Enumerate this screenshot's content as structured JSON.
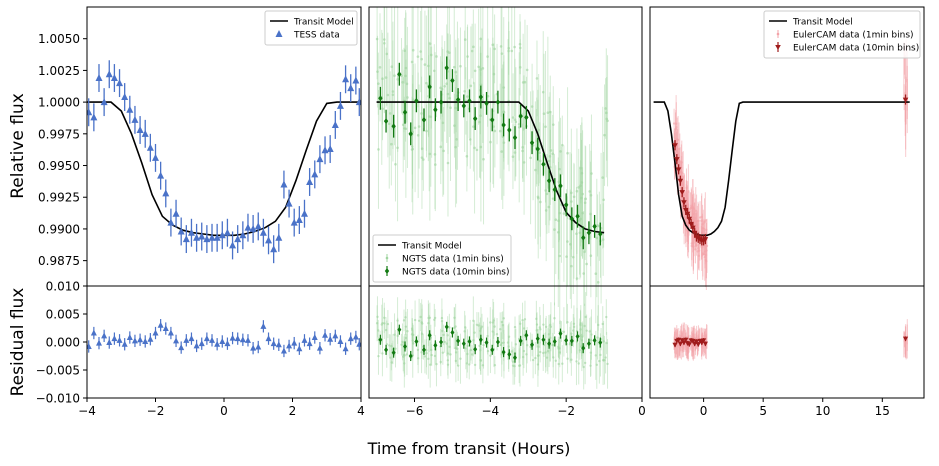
{
  "figure": {
    "xlabel": "Time from transit (Hours)",
    "ylabel_top": "Relative flux",
    "ylabel_bottom": "Residual flux"
  },
  "colors": {
    "tess": "#4a72c8",
    "ngts_light": "#9fd49f",
    "ngts": "#127a12",
    "euler_light": "#f3a3a8",
    "euler": "#a01c1c",
    "model": "#000000"
  },
  "chart_data": [
    {
      "type": "scatter",
      "panel": "tess",
      "legend": [
        "Transit Model",
        "TESS data"
      ],
      "legend_position": "top-right",
      "xlim": [
        -4,
        4
      ],
      "ylim": [
        0.9855,
        1.0075
      ],
      "xticks": [
        "-4",
        "-2",
        "0",
        "2",
        "4"
      ],
      "yticks": [
        "0.9875",
        "0.9900",
        "0.9925",
        "0.9950",
        "0.9975",
        "1.0000",
        "1.0025",
        "1.0050"
      ],
      "residual_ylim": [
        -0.01,
        0.01
      ],
      "residual_yticks": [
        "-0.010",
        "-0.005",
        "0.000",
        "0.005",
        "0.010"
      ],
      "model": {
        "x": [
          -4,
          -3.3,
          -3.0,
          -2.7,
          -2.4,
          -2.1,
          -1.8,
          -1.5,
          -1.2,
          -0.9,
          -0.6,
          -0.3,
          0,
          0.3,
          0.6,
          0.9,
          1.2,
          1.5,
          1.8,
          2.1,
          2.4,
          2.7,
          3.0,
          3.3,
          4
        ],
        "y": [
          1.0,
          1.0,
          0.9993,
          0.9975,
          0.9952,
          0.9927,
          0.991,
          0.9903,
          0.9899,
          0.9897,
          0.9896,
          0.9895,
          0.9895,
          0.9895,
          0.9896,
          0.9898,
          0.9901,
          0.9906,
          0.9917,
          0.9938,
          0.9962,
          0.9985,
          0.9999,
          1.0,
          1.0
        ]
      },
      "x": [
        -3.95,
        -3.8,
        -3.65,
        -3.5,
        -3.35,
        -3.2,
        -3.05,
        -2.9,
        -2.75,
        -2.6,
        -2.45,
        -2.3,
        -2.15,
        -2.0,
        -1.85,
        -1.7,
        -1.55,
        -1.4,
        -1.25,
        -1.1,
        -0.95,
        -0.8,
        -0.65,
        -0.5,
        -0.35,
        -0.2,
        -0.05,
        0.1,
        0.25,
        0.4,
        0.55,
        0.7,
        0.85,
        1.0,
        1.15,
        1.3,
        1.45,
        1.6,
        1.75,
        1.9,
        2.05,
        2.2,
        2.35,
        2.5,
        2.65,
        2.8,
        2.95,
        3.1,
        3.25,
        3.4,
        3.55,
        3.7,
        3.85,
        3.95
      ],
      "y": [
        0.9992,
        0.9988,
        1.0019,
        1.0,
        1.0022,
        1.0019,
        1.0015,
        1.0004,
        0.9994,
        0.9986,
        0.9978,
        0.9975,
        0.9964,
        0.9956,
        0.9942,
        0.9928,
        0.9905,
        0.9912,
        0.9898,
        0.9892,
        0.9897,
        0.9893,
        0.9894,
        0.9892,
        0.9893,
        0.9893,
        0.9895,
        0.9897,
        0.9887,
        0.9892,
        0.9895,
        0.9901,
        0.99,
        0.9902,
        0.9897,
        0.9891,
        0.9884,
        0.9893,
        0.9935,
        0.992,
        0.9905,
        0.9907,
        0.9912,
        0.9937,
        0.9943,
        0.9955,
        0.9962,
        0.9963,
        0.9982,
        0.9997,
        1.0018,
        1.0011,
        1.0017,
        1.0
      ],
      "residual": [
        -0.0008,
        0.0016,
        -0.0002,
        0.0011,
        -0.0001,
        0.0006,
        0.0003,
        -0.0004,
        0.0008,
        0.0002,
        0.0004,
        0.0001,
        0.0005,
        0.0016,
        0.003,
        0.0024,
        0.0016,
        0.0002,
        -0.001,
        0.0003,
        0.0006,
        -0.0007,
        -0.0003,
        0.0006,
        0.0003,
        -0.0004,
        0.0001,
        -0.0003,
        0.0007,
        0.0006,
        0.0004,
        0.0003,
        -0.0011,
        -0.0009,
        0.0028,
        0.0006,
        -0.0003,
        -0.0005,
        -0.0016,
        -0.0007,
        -0.0002,
        -0.0012,
        0.0003,
        -0.0003,
        0.0008,
        -0.0011,
        0.0012,
        0.0005,
        0.0011,
        0.0001,
        -0.0012,
        0.0006,
        0.0009,
        -0.0004
      ]
    },
    {
      "type": "scatter",
      "panel": "ngts",
      "legend": [
        "Transit Model",
        "NGTS data (1min bins)",
        "NGTS data (10min bins)"
      ],
      "legend_position": "bottom-left",
      "xlim": [
        -7.2,
        0.0
      ],
      "ylim": [
        0.9855,
        1.0075
      ],
      "xticks": [
        "-6",
        "-4",
        "-2",
        "0"
      ],
      "residual_ylim": [
        -0.01,
        0.01
      ],
      "model": {
        "x": [
          -7.0,
          -3.25,
          -3.0,
          -2.75,
          -2.5,
          -2.25,
          -2.0,
          -1.75,
          -1.5,
          -1.25,
          -1.0
        ],
        "y": [
          1.0,
          1.0,
          0.9993,
          0.9975,
          0.9952,
          0.993,
          0.9913,
          0.9905,
          0.99,
          0.9898,
          0.9897
        ]
      },
      "x": [
        -6.9,
        -6.75,
        -6.55,
        -6.4,
        -6.25,
        -6.1,
        -5.95,
        -5.75,
        -5.6,
        -5.45,
        -5.3,
        -5.15,
        -5.0,
        -4.85,
        -4.7,
        -4.55,
        -4.4,
        -4.25,
        -4.1,
        -3.95,
        -3.8,
        -3.65,
        -3.5,
        -3.35,
        -3.2,
        -3.05,
        -2.9,
        -2.75,
        -2.6,
        -2.45,
        -2.3,
        -2.15,
        -2.0,
        -1.85,
        -1.7,
        -1.55,
        -1.4,
        -1.25,
        -1.1
      ],
      "y": [
        1.0003,
        0.9985,
        0.9981,
        1.0022,
        0.9992,
        0.9975,
        1.0001,
        0.9986,
        1.0012,
        0.9994,
        1.0,
        1.0027,
        1.0017,
        1.0002,
        0.9997,
        1.0001,
        0.9987,
        1.0004,
        0.9999,
        0.9986,
        1.0,
        0.9982,
        0.9978,
        0.9972,
        0.9989,
        0.9988,
        0.9968,
        0.9963,
        0.9951,
        0.9938,
        0.9931,
        0.9934,
        0.9919,
        0.9908,
        0.991,
        0.9893,
        0.9897,
        0.9902,
        0.9896
      ],
      "residual": [
        0.0004,
        -0.0014,
        -0.0019,
        0.0022,
        -0.0008,
        -0.0025,
        0.0001,
        -0.0014,
        0.0012,
        -0.0006,
        0.0,
        0.0027,
        0.0017,
        0.0002,
        -0.0003,
        0.0001,
        -0.0013,
        0.0004,
        -0.0001,
        -0.0014,
        0.0,
        -0.0018,
        -0.0022,
        -0.0028,
        0.0002,
        0.0012,
        -0.0005,
        0.0006,
        0.0004,
        -0.0003,
        0.0001,
        0.0015,
        0.0003,
        0.0002,
        0.001,
        -0.0011,
        -0.0003,
        0.0003,
        -0.0001
      ]
    },
    {
      "type": "scatter",
      "panel": "euler",
      "legend": [
        "Transit Model",
        "EulerCAM data (1min bins)",
        "EulerCAM data (10min bins)"
      ],
      "legend_position": "top-right",
      "xlim": [
        -4.5,
        18.5
      ],
      "ylim": [
        0.9855,
        1.0075
      ],
      "xticks": [
        "0",
        "5",
        "10",
        "15"
      ],
      "residual_ylim": [
        -0.01,
        0.01
      ],
      "model": {
        "x": [
          -4.2,
          -3.3,
          -3.0,
          -2.7,
          -2.4,
          -2.1,
          -1.8,
          -1.5,
          -1.2,
          -0.9,
          -0.6,
          -0.3,
          0,
          0.3,
          0.6,
          0.9,
          1.2,
          1.5,
          1.8,
          2.1,
          2.4,
          2.7,
          3.0,
          3.3,
          17.3
        ],
        "y": [
          1.0,
          1.0,
          0.9993,
          0.9975,
          0.9952,
          0.9927,
          0.991,
          0.9903,
          0.9899,
          0.9897,
          0.9896,
          0.9895,
          0.9895,
          0.9895,
          0.9896,
          0.9898,
          0.9901,
          0.9906,
          0.9917,
          0.9938,
          0.9962,
          0.9985,
          0.9999,
          1.0,
          1.0
        ]
      },
      "x": [
        -2.4,
        -2.25,
        -2.1,
        -1.95,
        -1.8,
        -1.65,
        -1.5,
        -1.35,
        -1.2,
        -1.05,
        -0.9,
        -0.75,
        -0.6,
        -0.45,
        -0.3,
        -0.15,
        0.0,
        0.15,
        16.95
      ],
      "y": [
        0.9966,
        0.9955,
        0.9947,
        0.9938,
        0.9929,
        0.9921,
        0.9915,
        0.9912,
        0.9908,
        0.9904,
        0.9901,
        0.9897,
        0.9894,
        0.9893,
        0.9892,
        0.9891,
        0.9891,
        0.9892,
        1.0002
      ],
      "residual": [
        -0.0005,
        0.0002,
        0.0004,
        -0.0003,
        0.0003,
        -0.0001,
        0.0004,
        -0.0002,
        -0.0004,
        0.0003,
        0.0002,
        -0.0003,
        0.0001,
        -0.0004,
        0.0002,
        -0.0001,
        0.0003,
        -0.0003,
        0.0006
      ]
    }
  ]
}
